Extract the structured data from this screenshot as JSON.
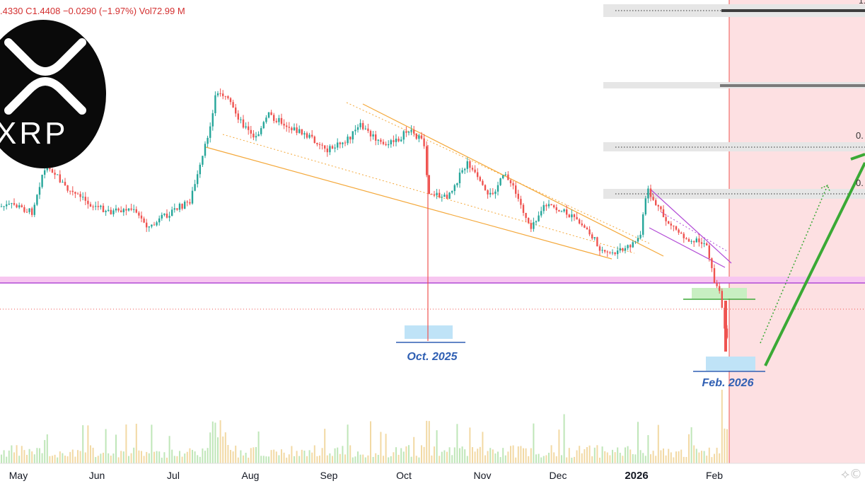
{
  "header": {
    "open_fragment": ".4330",
    "close_label": "C",
    "close_value": "1.4408",
    "change": "−0.0290 (−1.97%)",
    "vol_label": "Vol",
    "vol_value": "72.99 M"
  },
  "logo": {
    "wordmark": "XRP",
    "icon": "xrp-logo-icon"
  },
  "watermark": {
    "icon": "tradingview-watermark-icon"
  },
  "colors": {
    "up": "#26a69a",
    "down": "#ef5350",
    "wedge": "#f4a83a",
    "falling_wedge": "#b24bd6",
    "resistance": "#b24bd6",
    "resistance_band": "#f7c6f0",
    "projection": "#3aa935",
    "forecast_zone": "#fde0e2",
    "label_blue": "#2f5fb3"
  },
  "chart_data": {
    "type": "candlestick",
    "x_axis": {
      "ticks": [
        "May",
        "Jun",
        "Jul",
        "Aug",
        "Sep",
        "Oct",
        "Nov",
        "Dec",
        "2026",
        "Feb"
      ],
      "bold_ticks": [
        "2026"
      ]
    },
    "annotations": [
      {
        "text": "Oct. 2025",
        "kind": "crash-low-marker"
      },
      {
        "text": "Feb. 2026",
        "kind": "crash-low-marker"
      }
    ],
    "right_edge_labels": [
      "1.",
      "0.",
      "0."
    ],
    "features": [
      "falling wedge (Jul–Dec)",
      "falling wedge (Jan–Feb)",
      "horizontal support line",
      "support/resistance bands",
      "projected rebound path"
    ]
  }
}
